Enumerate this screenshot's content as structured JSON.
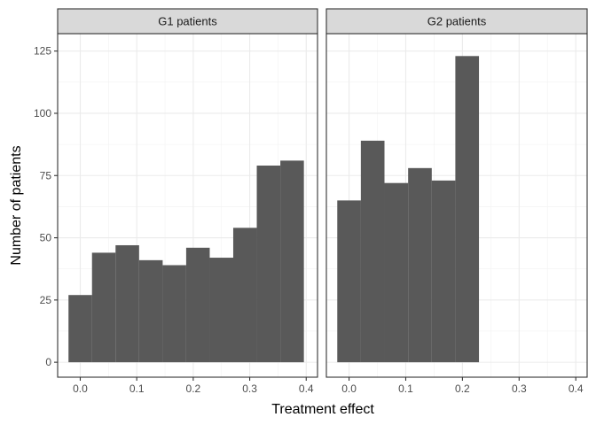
{
  "chart_data": {
    "type": "bar",
    "xlabel": "Treatment effect",
    "ylabel": "Number of patients",
    "xlim": [
      -0.04,
      0.42
    ],
    "ylim": [
      -6,
      132
    ],
    "x_ticks": [
      0.0,
      0.1,
      0.2,
      0.3,
      0.4
    ],
    "x_tick_labels": [
      "0.0",
      "0.1",
      "0.2",
      "0.3",
      "0.4"
    ],
    "y_ticks": [
      0,
      25,
      50,
      75,
      100,
      125
    ],
    "y_tick_labels": [
      "0",
      "25",
      "50",
      "75",
      "100",
      "125"
    ],
    "bin_width": 0.0417,
    "grid": true,
    "bar_color": "#595959",
    "panels": [
      {
        "title": "G1 patients",
        "bin_starts": [
          -0.0208,
          0.0208,
          0.0625,
          0.1042,
          0.1458,
          0.1875,
          0.2292,
          0.2708,
          0.3125,
          0.3542
        ],
        "values": [
          27,
          44,
          47,
          41,
          39,
          46,
          42,
          54,
          79,
          81
        ]
      },
      {
        "title": "G2 patients",
        "bin_starts": [
          -0.0208,
          0.0208,
          0.0625,
          0.1042,
          0.1458,
          0.1875
        ],
        "values": [
          65,
          89,
          72,
          78,
          73,
          123
        ]
      }
    ]
  }
}
